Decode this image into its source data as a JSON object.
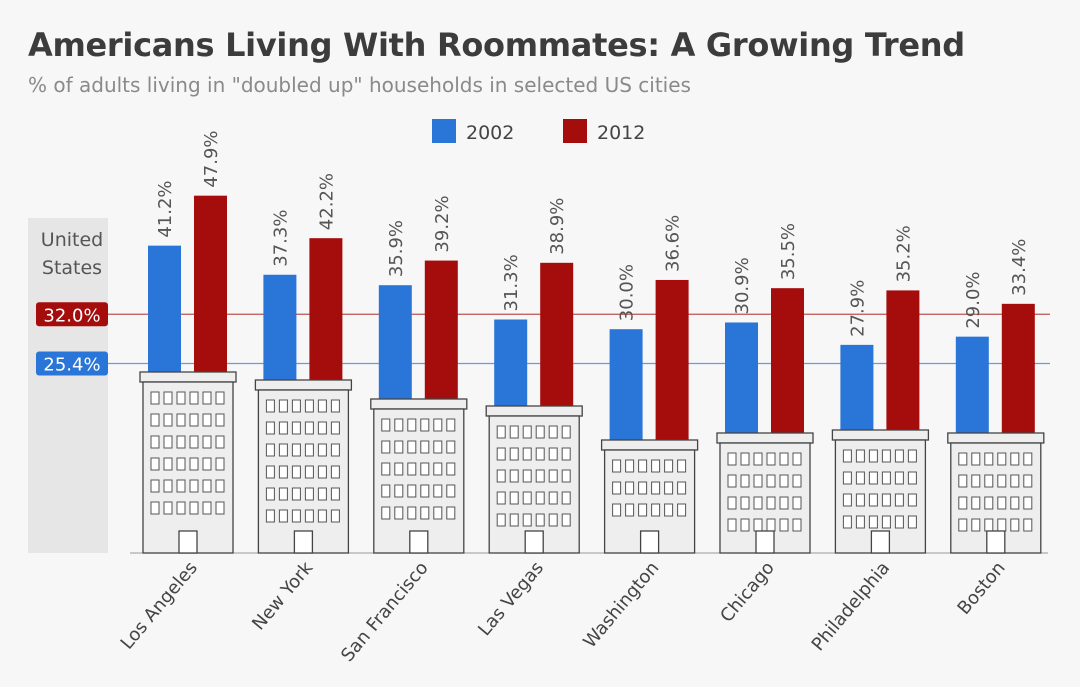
{
  "title": "Americans Living With Roommates: A Growing Trend",
  "subtitle": "% of adults living in \"doubled up\" households in selected US cities",
  "chart_data": {
    "type": "bar",
    "categories": [
      "Los Angeles",
      "New York",
      "San Francisco",
      "Las Vegas",
      "Washington",
      "Chicago",
      "Philadelphia",
      "Boston"
    ],
    "series": [
      {
        "name": "2002",
        "color": "#2a76d8",
        "values": [
          41.2,
          37.3,
          35.9,
          31.3,
          30.0,
          30.9,
          27.9,
          29.0
        ]
      },
      {
        "name": "2012",
        "color": "#a50d0d",
        "values": [
          47.9,
          42.2,
          39.2,
          38.9,
          36.6,
          35.5,
          35.2,
          33.4
        ]
      }
    ],
    "reference": {
      "label": "United States",
      "values": [
        {
          "series": "2002",
          "value": 25.4,
          "label": "25.4%"
        },
        {
          "series": "2012",
          "value": 32.0,
          "label": "32.0%"
        }
      ]
    },
    "legend": "top-center",
    "ylim": [
      0,
      50
    ],
    "value_suffix": "%"
  }
}
